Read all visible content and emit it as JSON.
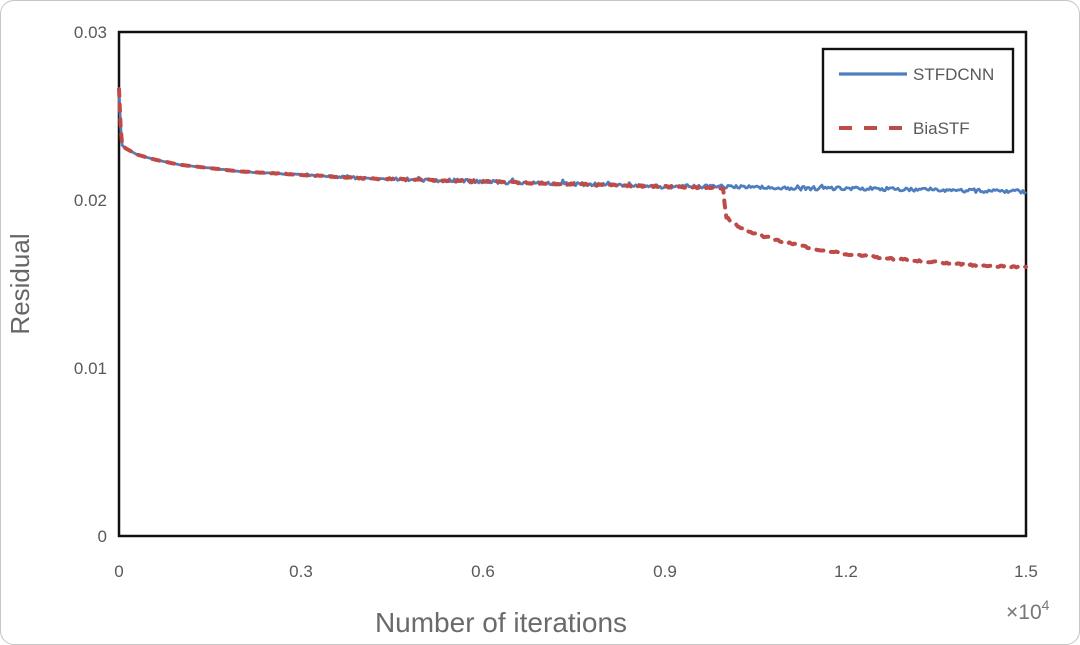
{
  "page": {
    "background": "#ffffff",
    "card_border_color": "#c6c6c6"
  },
  "chart_data": {
    "type": "line",
    "title": "",
    "xlabel": "Number of iterations",
    "ylabel": "Residual",
    "x_multiplier": {
      "base": "×10",
      "exp": "4"
    },
    "xlim": [
      0,
      1.5
    ],
    "ylim": [
      0,
      0.03
    ],
    "x_ticks": [
      0,
      0.3,
      0.6,
      0.9,
      1.2,
      1.5
    ],
    "x_tick_labels": [
      "0",
      "0.3",
      "0.6",
      "0.9",
      "1.2",
      "1.5"
    ],
    "y_ticks": [
      0,
      0.01,
      0.02,
      0.03
    ],
    "y_tick_labels": [
      "0",
      "0.01",
      "0.02",
      "0.03"
    ],
    "grid": false,
    "legend_position": "top-right",
    "axis_color": "#111111",
    "label_color": "#595959",
    "series": [
      {
        "name": "STFDCNN",
        "color": "#4E7EBE",
        "style": "solid",
        "line_width": 2.8,
        "noise_amplitude": 0.00011,
        "points": [
          [
            0.0,
            0.0266
          ],
          [
            0.004,
            0.0233
          ],
          [
            0.01,
            0.0231
          ],
          [
            0.03,
            0.0227
          ],
          [
            0.06,
            0.0224
          ],
          [
            0.1,
            0.0221
          ],
          [
            0.15,
            0.0219
          ],
          [
            0.2,
            0.0217
          ],
          [
            0.25,
            0.0216
          ],
          [
            0.3,
            0.0215
          ],
          [
            0.35,
            0.0214
          ],
          [
            0.4,
            0.0213
          ],
          [
            0.5,
            0.0212
          ],
          [
            0.6,
            0.0211
          ],
          [
            0.7,
            0.021
          ],
          [
            0.8,
            0.0209
          ],
          [
            0.9,
            0.0208
          ],
          [
            1.0,
            0.0208
          ],
          [
            1.1,
            0.0207
          ],
          [
            1.2,
            0.0207
          ],
          [
            1.35,
            0.0206
          ],
          [
            1.5,
            0.0205
          ]
        ]
      },
      {
        "name": "BiaSTF",
        "color": "#BE4B48",
        "style": "dashed",
        "dash": [
          7,
          8
        ],
        "line_width": 4,
        "noise_amplitude": 5e-05,
        "points": [
          [
            0.0,
            0.0266
          ],
          [
            0.004,
            0.0233
          ],
          [
            0.01,
            0.0231
          ],
          [
            0.03,
            0.0227
          ],
          [
            0.06,
            0.0224
          ],
          [
            0.1,
            0.0221
          ],
          [
            0.15,
            0.0219
          ],
          [
            0.2,
            0.0217
          ],
          [
            0.25,
            0.0216
          ],
          [
            0.3,
            0.0215
          ],
          [
            0.35,
            0.0214
          ],
          [
            0.4,
            0.0213
          ],
          [
            0.5,
            0.0212
          ],
          [
            0.6,
            0.0211
          ],
          [
            0.7,
            0.021
          ],
          [
            0.8,
            0.0209
          ],
          [
            0.9,
            0.0208
          ],
          [
            1.0,
            0.0207
          ],
          [
            1.003,
            0.019
          ],
          [
            1.03,
            0.0183
          ],
          [
            1.06,
            0.0179
          ],
          [
            1.1,
            0.0175
          ],
          [
            1.15,
            0.0171
          ],
          [
            1.2,
            0.0168
          ],
          [
            1.28,
            0.0165
          ],
          [
            1.35,
            0.0163
          ],
          [
            1.42,
            0.0161
          ],
          [
            1.5,
            0.016
          ]
        ]
      }
    ]
  }
}
